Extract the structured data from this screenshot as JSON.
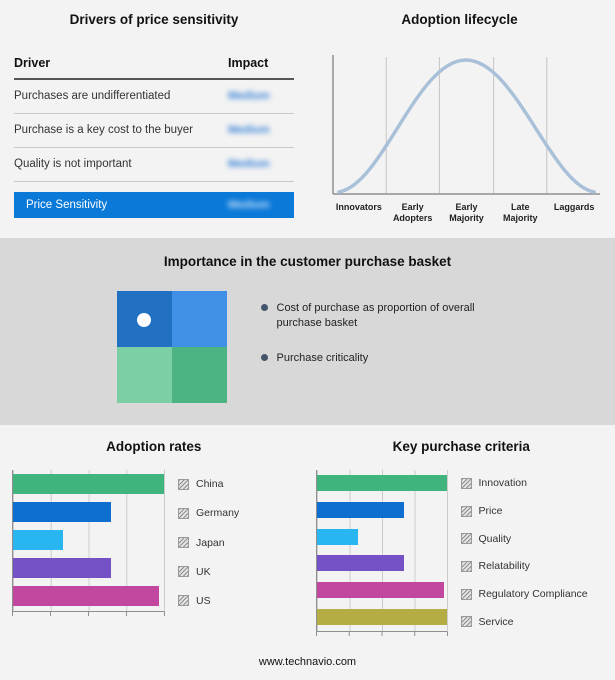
{
  "footer": {
    "text": "www.technavio.com"
  },
  "purchase_basket": {
    "title": "Importance in the customer purchase basket",
    "bullets": [
      "Cost of purchase as proportion of overall purchase basket",
      "Purchase criticality"
    ],
    "quadrant_colors": [
      "#2170c2",
      "#3f90e6",
      "#7ccfa4",
      "#4cb383"
    ],
    "dot_color": "#ffffff"
  },
  "chart_data": [
    {
      "id": "drivers-of-price-sensitivity",
      "type": "table",
      "title": "Drivers of price sensitivity",
      "columns": [
        "Driver",
        "Impact"
      ],
      "rows": [
        [
          "Purchases are undifferentiated",
          "Medium"
        ],
        [
          "Purchase is a key cost to the buyer",
          "Medium"
        ],
        [
          "Quality is not important",
          "Medium"
        ]
      ],
      "highlight_row": [
        "Price Sensitivity",
        "Medium"
      ],
      "highlight_color": "#0a79d8",
      "impact_values_blurred": true
    },
    {
      "id": "adoption-lifecycle",
      "type": "area",
      "title": "Adoption lifecycle",
      "shape": "bell-curve",
      "categories": [
        "Innovators",
        "Early Adopters",
        "Early Majority",
        "Late Majority",
        "Laggards"
      ],
      "stroke_color": "#a9c0d9",
      "gridlines": true
    },
    {
      "id": "adoption-rates",
      "type": "bar",
      "title": "Adoption rates",
      "orientation": "horizontal",
      "categories": [
        "China",
        "Germany",
        "Japan",
        "UK",
        "US"
      ],
      "values": [
        100,
        65,
        33,
        65,
        97
      ],
      "colors": [
        "#3fb57d",
        "#0f6fd0",
        "#29b5f0",
        "#7452c6",
        "#c2479e"
      ],
      "xlim": [
        0,
        100
      ],
      "gridlines": true,
      "legend_position": "right"
    },
    {
      "id": "key-purchase-criteria",
      "type": "bar",
      "title": "Key purchase criteria",
      "orientation": "horizontal",
      "categories": [
        "Innovation",
        "Price",
        "Quality",
        "Relatability",
        "Regulatory Compliance",
        "Service"
      ],
      "values": [
        100,
        67,
        32,
        67,
        98,
        100
      ],
      "colors": [
        "#3fb57d",
        "#0f6fd0",
        "#29b5f0",
        "#7452c6",
        "#c2479e",
        "#b3ad43"
      ],
      "xlim": [
        0,
        100
      ],
      "gridlines": true,
      "legend_position": "right"
    }
  ]
}
